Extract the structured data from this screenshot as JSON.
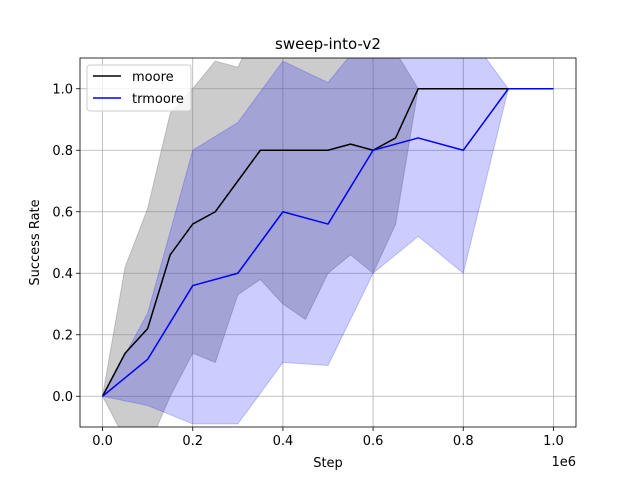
{
  "chart_data": {
    "type": "line",
    "title": "sweep-into-v2",
    "xlabel": "Step",
    "ylabel": "Success Rate",
    "x_offset_label": "1e6",
    "xlim": [
      -50000,
      1050000
    ],
    "ylim": [
      -0.1,
      1.1
    ],
    "x_ticks": [
      0,
      200000,
      400000,
      600000,
      800000,
      1000000
    ],
    "x_tick_labels": [
      "0.0",
      "0.2",
      "0.4",
      "0.6",
      "0.8",
      "1.0"
    ],
    "y_ticks": [
      0.0,
      0.2,
      0.4,
      0.6,
      0.8,
      1.0
    ],
    "y_tick_labels": [
      "0.0",
      "0.2",
      "0.4",
      "0.6",
      "0.8",
      "1.0"
    ],
    "grid": true,
    "legend_position": "top-left",
    "series": [
      {
        "name": "moore",
        "color": "#000000",
        "band_color": "#808080",
        "x": [
          0,
          50000,
          100000,
          150000,
          200000,
          250000,
          300000,
          350000,
          400000,
          450000,
          500000,
          550000,
          600000,
          650000,
          700000,
          750000,
          800000,
          850000,
          900000,
          950000,
          1000000
        ],
        "values": [
          0.0,
          0.14,
          0.22,
          0.46,
          0.56,
          0.6,
          0.7,
          0.8,
          0.8,
          0.8,
          0.8,
          0.82,
          0.8,
          0.84,
          1.0,
          1.0,
          1.0,
          1.0,
          1.0,
          1.0,
          1.0
        ],
        "upper": [
          0.0,
          0.42,
          0.61,
          0.92,
          1.0,
          1.09,
          1.07,
          1.22,
          1.3,
          1.35,
          1.2,
          1.2,
          1.2,
          1.12,
          1.0,
          1.0,
          1.0,
          1.0,
          1.0,
          1.0,
          1.0
        ],
        "lower": [
          0.0,
          -0.14,
          -0.17,
          0.0,
          0.14,
          0.11,
          0.33,
          0.38,
          0.3,
          0.25,
          0.4,
          0.46,
          0.4,
          0.56,
          1.0,
          1.0,
          1.0,
          1.0,
          1.0,
          1.0,
          1.0
        ]
      },
      {
        "name": "trmoore",
        "color": "#0000ff",
        "band_color": "#0000ff",
        "x": [
          0,
          100000,
          200000,
          300000,
          400000,
          500000,
          600000,
          700000,
          800000,
          900000,
          1000000
        ],
        "values": [
          0.0,
          0.12,
          0.36,
          0.4,
          0.6,
          0.56,
          0.8,
          0.84,
          0.8,
          1.0,
          1.0
        ],
        "upper": [
          0.0,
          0.27,
          0.8,
          0.89,
          1.09,
          1.02,
          1.2,
          1.16,
          1.2,
          1.0,
          1.0
        ],
        "lower": [
          0.0,
          -0.03,
          -0.09,
          -0.09,
          0.11,
          0.1,
          0.4,
          0.52,
          0.4,
          1.0,
          1.0
        ]
      }
    ]
  }
}
